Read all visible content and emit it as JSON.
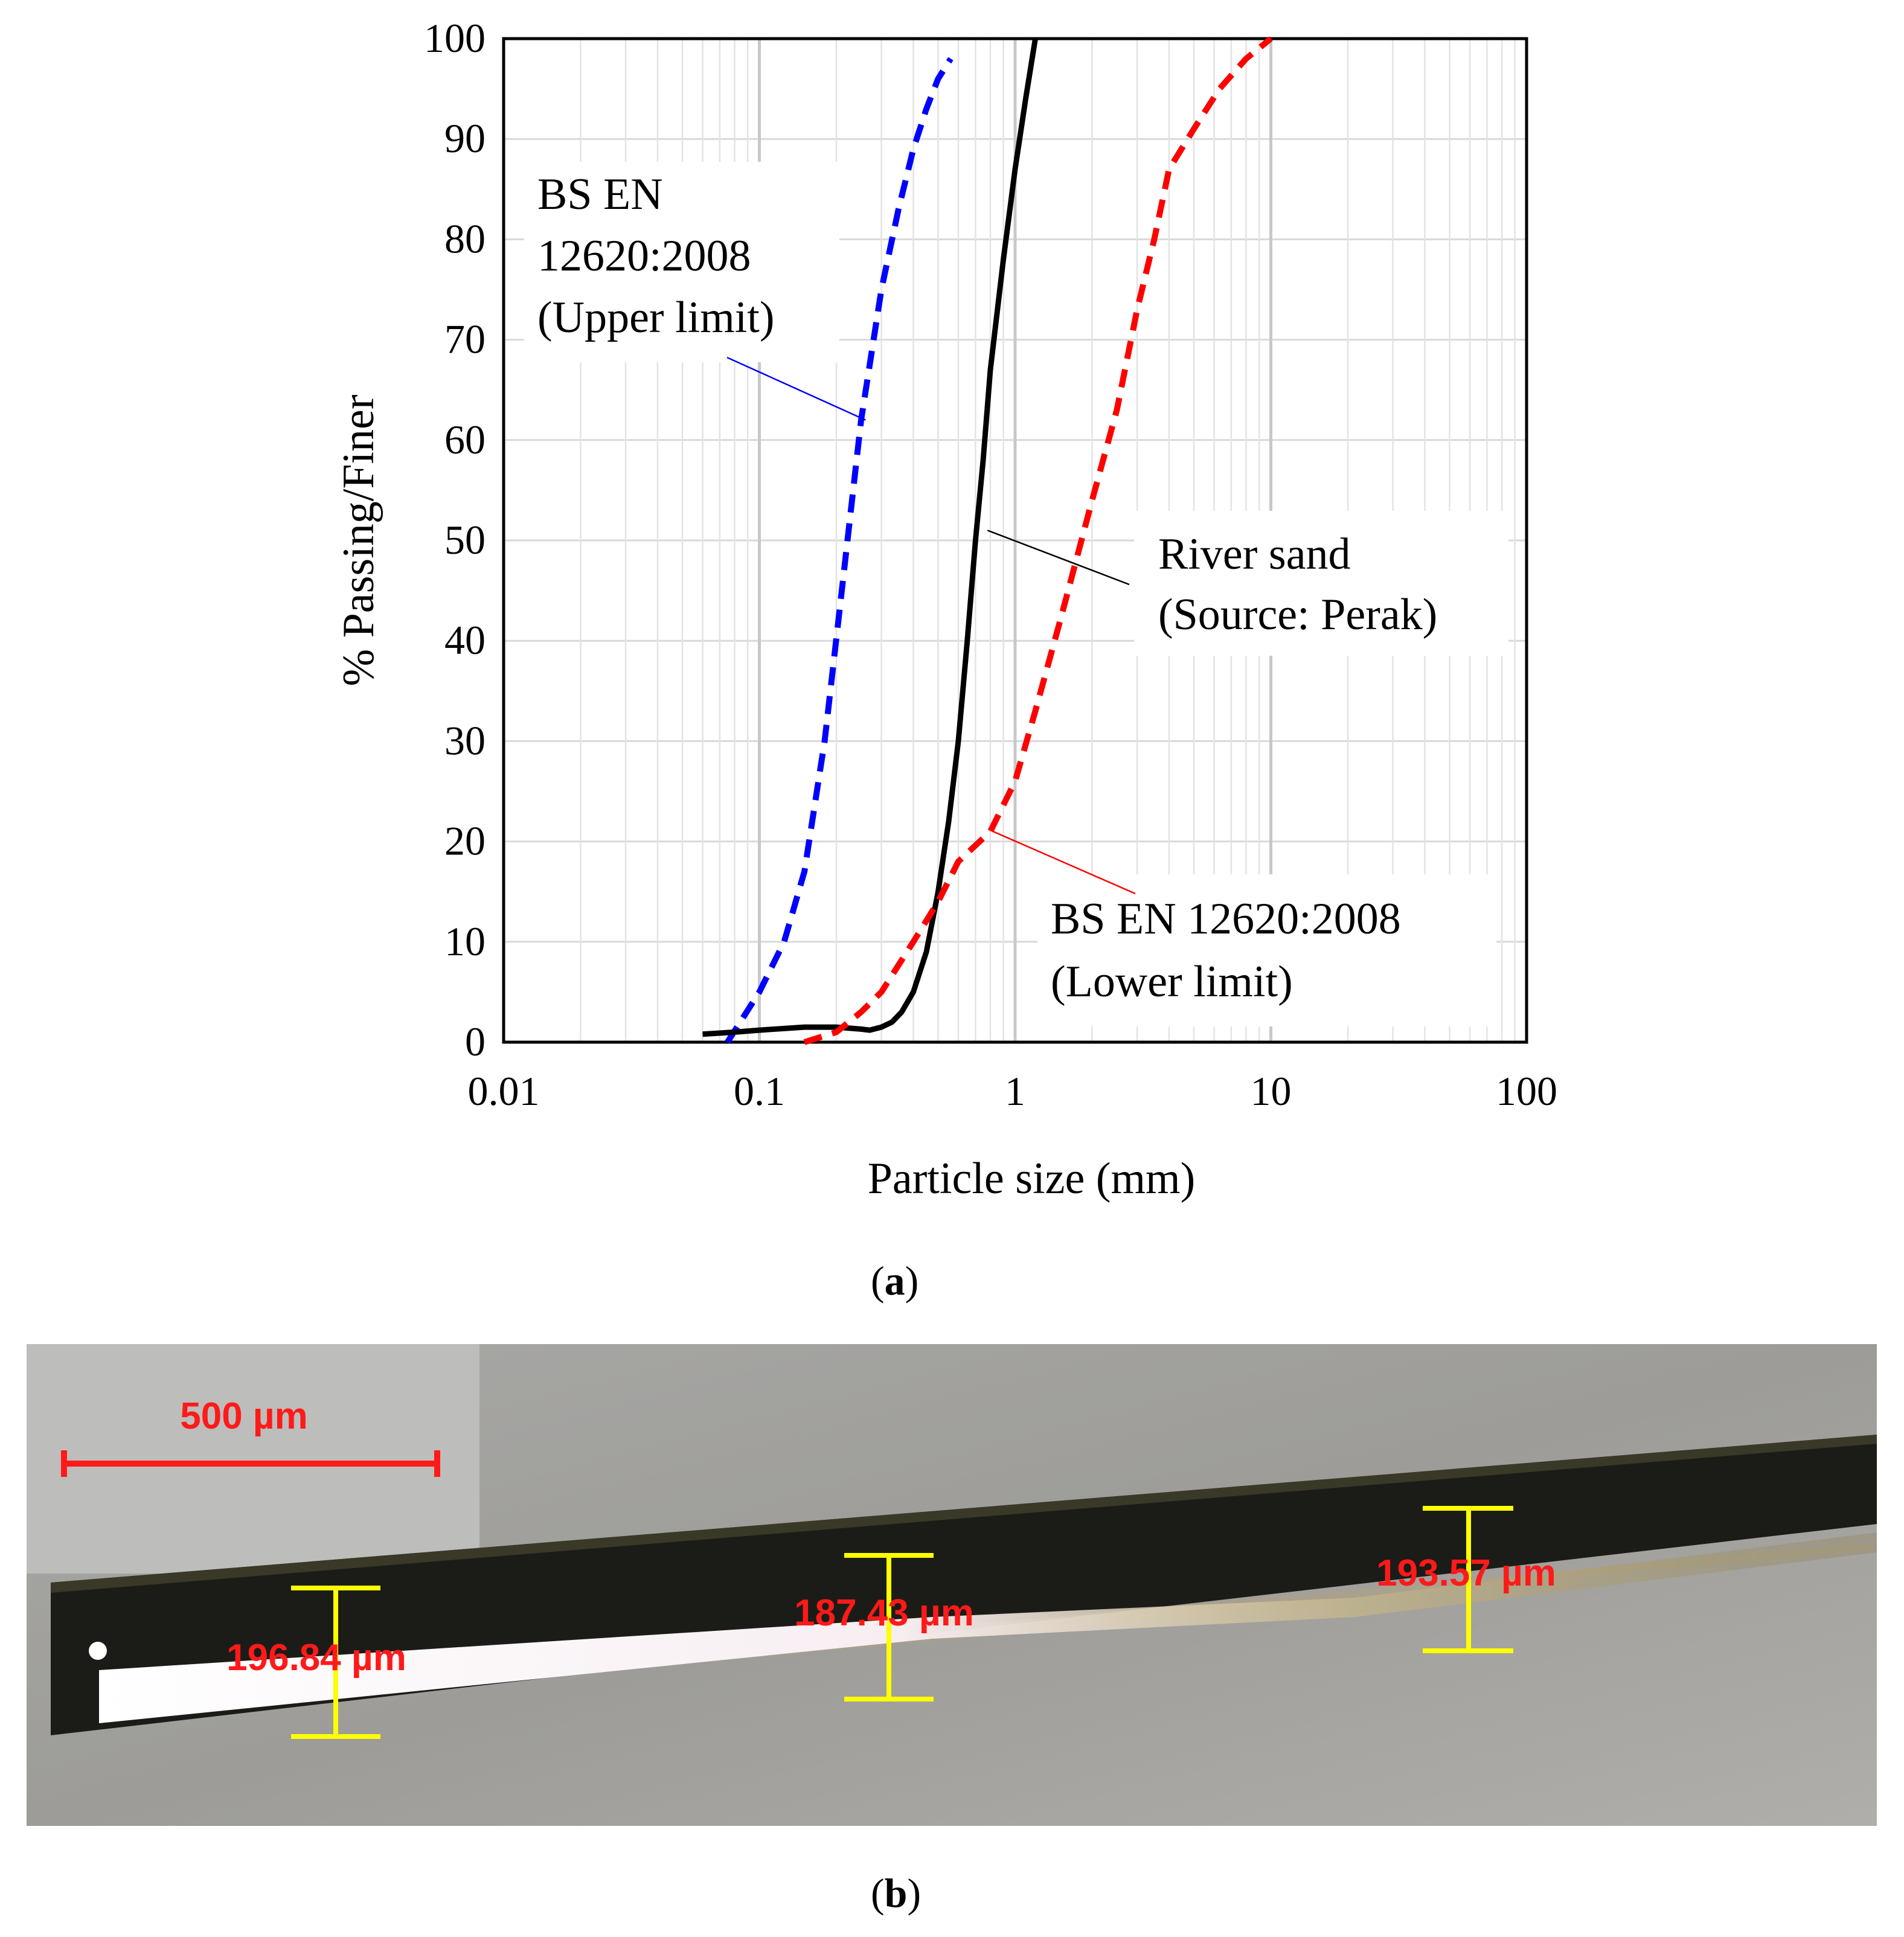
{
  "chart_data": {
    "type": "line",
    "xscale": "log",
    "xlim": [
      0.01,
      100
    ],
    "ylim": [
      0,
      100
    ],
    "xlabel": "Particle size (mm)",
    "ylabel": "% Passing/Finer",
    "xticks": [
      "0.01",
      "0.1",
      "1",
      "10",
      "100"
    ],
    "yticks": [
      "0",
      "10",
      "20",
      "30",
      "40",
      "50",
      "60",
      "70",
      "80",
      "90",
      "100"
    ],
    "grid": true,
    "series": [
      {
        "name": "BS EN 12620:2008 (Upper limit)",
        "color": "#0000ff",
        "style": "dashed",
        "x": [
          0.075,
          0.1,
          0.125,
          0.15,
          0.18,
          0.21,
          0.25,
          0.3,
          0.35,
          0.4,
          0.45,
          0.5,
          0.56
        ],
        "y": [
          0,
          5,
          10,
          17,
          30,
          45,
          62,
          75,
          83,
          89,
          93,
          96,
          98
        ]
      },
      {
        "name": "River sand (Source: Perak)",
        "color": "#000000",
        "style": "solid",
        "x": [
          0.06,
          0.08,
          0.1,
          0.15,
          0.2,
          0.25,
          0.27,
          0.3,
          0.33,
          0.36,
          0.4,
          0.45,
          0.5,
          0.55,
          0.6,
          0.65,
          0.7,
          0.75,
          0.8,
          0.9,
          1.0,
          1.1,
          1.2
        ],
        "y": [
          0.8,
          1.0,
          1.2,
          1.5,
          1.5,
          1.3,
          1.2,
          1.5,
          2.0,
          3.0,
          5.0,
          9.0,
          15.0,
          22.0,
          30.0,
          40.0,
          50.0,
          58.0,
          67.0,
          78.0,
          87.0,
          94.0,
          100.0
        ]
      },
      {
        "name": "BS EN 12620:2008 (Lower limit)",
        "color": "#ff0000",
        "style": "dashed",
        "x": [
          0.15,
          0.2,
          0.25,
          0.3,
          0.4,
          0.5,
          0.6,
          0.8,
          1.0,
          1.2,
          1.5,
          2.0,
          2.5,
          3.0,
          3.5,
          4.0,
          5.0,
          6.3,
          8.0,
          10.0
        ],
        "y": [
          0,
          1,
          3,
          5,
          10,
          14,
          18,
          21,
          26,
          33,
          42,
          54,
          63,
          73,
          80,
          87,
          91,
          95,
          98,
          100
        ]
      }
    ],
    "annotations": [
      {
        "text_lines": [
          "BS EN",
          "12620:2008",
          "(Upper limit)"
        ],
        "points_to": {
          "x": 0.26,
          "y": 62
        }
      },
      {
        "text_lines": [
          "River sand",
          "(Source: Perak)"
        ],
        "points_to": {
          "x": 0.78,
          "y": 51
        }
      },
      {
        "text_lines": [
          "BS EN 12620:2008",
          "(Lower limit)"
        ],
        "points_to": {
          "x": 0.82,
          "y": 21
        }
      }
    ]
  },
  "panel_labels": {
    "a_open": "(",
    "a_letter": "a",
    "a_close": ")",
    "b_open": "(",
    "b_letter": "b",
    "b_close": ")"
  },
  "micrograph": {
    "scale_bar_label": "500 µm",
    "measurements": [
      "196.84 µm",
      "187.43 µm",
      "193.57 µm"
    ]
  }
}
